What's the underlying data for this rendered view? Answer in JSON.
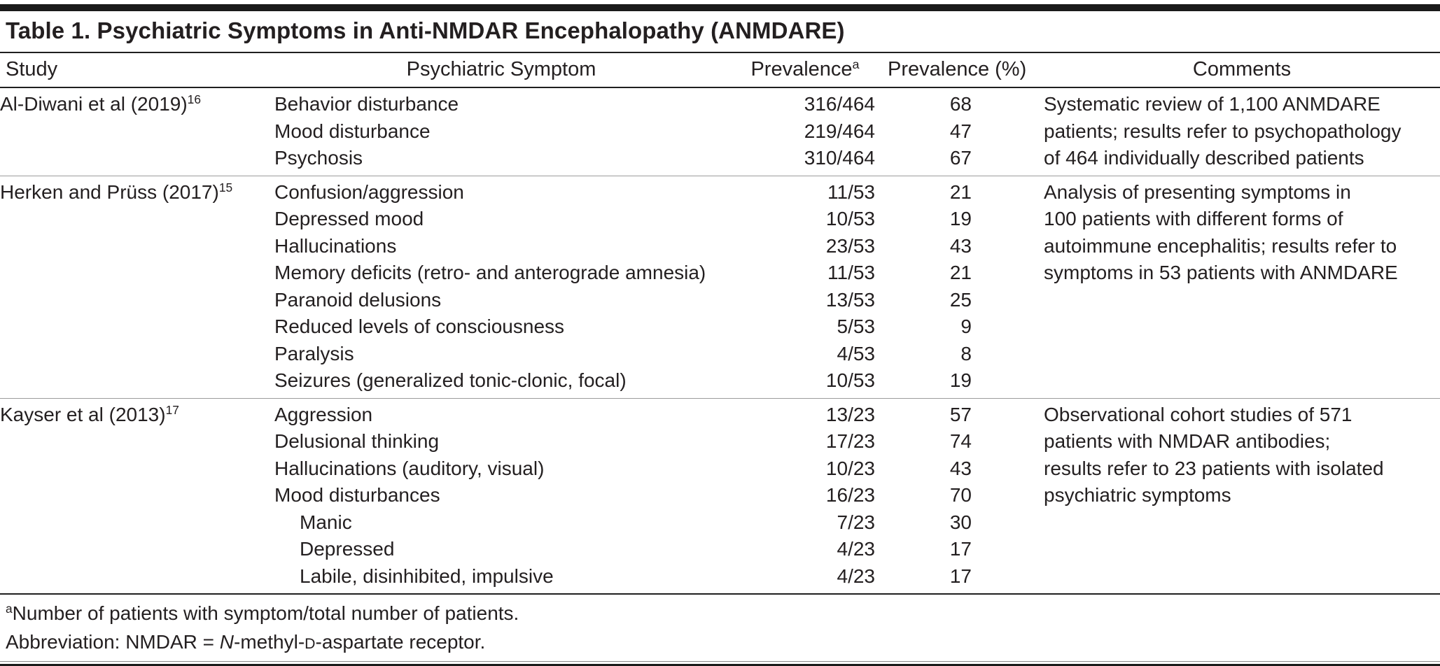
{
  "title": "Table 1. Psychiatric Symptoms in Anti-NMDAR Encephalopathy (ANMDARE)",
  "headers": {
    "study": "Study",
    "symptom": "Psychiatric Symptom",
    "prevalence": "Prevalence",
    "prevalence_sup": "a",
    "prevalence_pct": "Prevalence (%)",
    "comments": "Comments"
  },
  "groups": [
    {
      "study": "Al-Diwani et al (2019)",
      "ref": "16",
      "rows": [
        {
          "symptom": "Behavior disturbance",
          "indent": 0,
          "prevalence": "316/464",
          "percent": "68"
        },
        {
          "symptom": "Mood disturbance",
          "indent": 0,
          "prevalence": "219/464",
          "percent": "47"
        },
        {
          "symptom": "Psychosis",
          "indent": 0,
          "prevalence": "310/464",
          "percent": "67"
        }
      ],
      "comment_lines": [
        "Systematic review of 1,100 ANMDARE",
        "patients; results refer to psychopathology",
        "of 464 individually described patients"
      ]
    },
    {
      "study": "Herken and Prüss (2017)",
      "ref": "15",
      "rows": [
        {
          "symptom": "Confusion/aggression",
          "indent": 0,
          "prevalence": "11/53",
          "percent": "21"
        },
        {
          "symptom": "Depressed mood",
          "indent": 0,
          "prevalence": "10/53",
          "percent": "19"
        },
        {
          "symptom": "Hallucinations",
          "indent": 0,
          "prevalence": "23/53",
          "percent": "43"
        },
        {
          "symptom": "Memory deficits (retro- and anterograde amnesia)",
          "indent": 0,
          "prevalence": "11/53",
          "percent": "21"
        },
        {
          "symptom": "Paranoid delusions",
          "indent": 0,
          "prevalence": "13/53",
          "percent": "25"
        },
        {
          "symptom": "Reduced levels of consciousness",
          "indent": 0,
          "prevalence": "5/53",
          "percent": "9"
        },
        {
          "symptom": "Paralysis",
          "indent": 0,
          "prevalence": "4/53",
          "percent": "8"
        },
        {
          "symptom": "Seizures (generalized tonic-clonic, focal)",
          "indent": 0,
          "prevalence": "10/53",
          "percent": "19"
        }
      ],
      "comment_lines": [
        "Analysis of presenting symptoms in",
        "100 patients with different forms of",
        "autoimmune encephalitis; results refer to",
        "symptoms in 53 patients with ANMDARE"
      ]
    },
    {
      "study": "Kayser et al (2013)",
      "ref": "17",
      "rows": [
        {
          "symptom": "Aggression",
          "indent": 0,
          "prevalence": "13/23",
          "percent": "57"
        },
        {
          "symptom": "Delusional thinking",
          "indent": 0,
          "prevalence": "17/23",
          "percent": "74"
        },
        {
          "symptom": "Hallucinations (auditory, visual)",
          "indent": 0,
          "prevalence": "10/23",
          "percent": "43"
        },
        {
          "symptom": "Mood disturbances",
          "indent": 0,
          "prevalence": "16/23",
          "percent": "70"
        },
        {
          "symptom": "Manic",
          "indent": 1,
          "prevalence": "7/23",
          "percent": "30"
        },
        {
          "symptom": "Depressed",
          "indent": 1,
          "prevalence": "4/23",
          "percent": "17"
        },
        {
          "symptom": "Labile, disinhibited, impulsive",
          "indent": 1,
          "prevalence": "4/23",
          "percent": "17"
        }
      ],
      "comment_lines": [
        "Observational cohort studies of 571",
        "patients with NMDAR antibodies;",
        "results refer to 23 patients with isolated",
        "psychiatric symptoms"
      ]
    }
  ],
  "footnotes": {
    "line1_sup": "a",
    "line1_text": "Number of patients with symptom/total number of patients.",
    "line2_parts": [
      {
        "text": "Abbreviation: NMDAR = ",
        "style": "plain"
      },
      {
        "text": "N",
        "style": "italic"
      },
      {
        "text": "-methyl-",
        "style": "plain"
      },
      {
        "text": "D",
        "style": "smallcap"
      },
      {
        "text": "-aspartate receptor.",
        "style": "plain"
      }
    ]
  }
}
